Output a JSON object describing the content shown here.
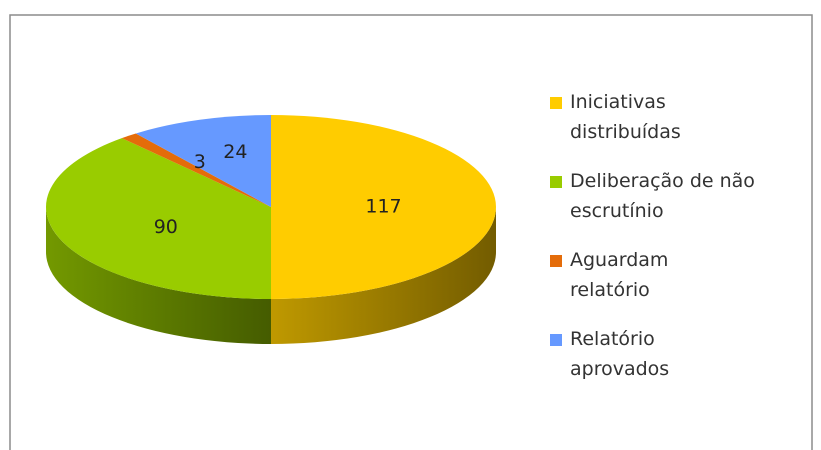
{
  "chart_data": {
    "type": "pie3d",
    "categories": [
      "Iniciativas\ndistribuídas",
      "Deliberação de não\nescrutínio",
      "Aguardam\nrelatório",
      "Relatório\naprovados"
    ],
    "values": [
      117,
      90,
      3,
      24
    ],
    "colors": [
      "#FFCC00",
      "#99CC00",
      "#E46C0A",
      "#6699FF"
    ],
    "legend": "right"
  }
}
